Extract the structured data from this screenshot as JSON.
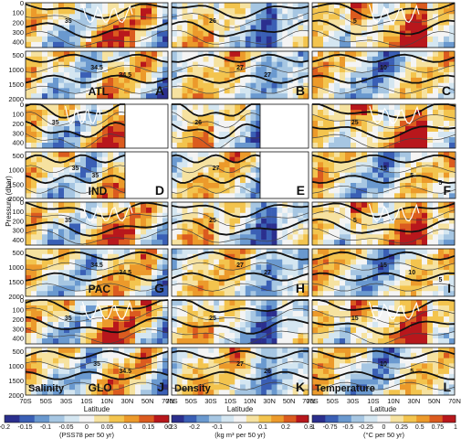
{
  "figure": {
    "y_axis_label": "Pressure (dbar)",
    "x_axis_label": "Latitude",
    "x_ticks": [
      "70S",
      "50S",
      "30S",
      "10S",
      "10N",
      "30N",
      "50N",
      "70N"
    ],
    "y_ticks_upper": [
      "0",
      "100",
      "200",
      "300",
      "400"
    ],
    "y_ticks_lower": [
      "500",
      "1000",
      "1500",
      "2000"
    ]
  },
  "chart_data": [
    {
      "type": "heatmap",
      "panel": "A",
      "column": "salinity",
      "basin": "ATL",
      "contour_labels": [
        "35",
        "34.5",
        "34.5"
      ]
    },
    {
      "type": "heatmap",
      "panel": "B",
      "column": "density",
      "basin": "",
      "contour_labels": [
        "26",
        "27",
        "27"
      ]
    },
    {
      "type": "heatmap",
      "panel": "C",
      "column": "temperature",
      "basin": "",
      "contour_labels": [
        "5",
        "10"
      ]
    },
    {
      "type": "heatmap",
      "panel": "D",
      "column": "salinity",
      "basin": "IND",
      "contour_labels": [
        "35",
        "35",
        "35"
      ]
    },
    {
      "type": "heatmap",
      "panel": "E",
      "column": "density",
      "basin": "",
      "contour_labels": [
        "26",
        "27"
      ]
    },
    {
      "type": "heatmap",
      "panel": "F",
      "column": "temperature",
      "basin": "",
      "contour_labels": [
        "25",
        "15",
        "5",
        "5"
      ]
    },
    {
      "type": "heatmap",
      "panel": "G",
      "column": "salinity",
      "basin": "PAC",
      "contour_labels": [
        "35",
        "34.5",
        "34.5"
      ]
    },
    {
      "type": "heatmap",
      "panel": "H",
      "column": "density",
      "basin": "",
      "contour_labels": [
        "25",
        "27",
        "27"
      ]
    },
    {
      "type": "heatmap",
      "panel": "I",
      "column": "temperature",
      "basin": "",
      "contour_labels": [
        "5",
        "15",
        "10",
        "5"
      ]
    },
    {
      "type": "heatmap",
      "panel": "J",
      "column": "salinity",
      "basin": "GLO",
      "variable_label": "Salinity",
      "contour_labels": [
        "35",
        "35",
        "34.5"
      ]
    },
    {
      "type": "heatmap",
      "panel": "K",
      "column": "density",
      "basin": "",
      "variable_label": "Density",
      "contour_labels": [
        "25",
        "27",
        "26"
      ]
    },
    {
      "type": "heatmap",
      "panel": "L",
      "column": "temperature",
      "basin": "",
      "variable_label": "Temperature",
      "contour_labels": [
        "15",
        "10",
        "5"
      ]
    }
  ],
  "colorbars": [
    {
      "ticks": [
        "-0.2",
        "-0.15",
        "-0.1",
        "-0.05",
        "0",
        "0.05",
        "0.1",
        "0.15",
        "0.2"
      ],
      "unit": "(PSS78 per 50 yr)"
    },
    {
      "ticks": [
        "-0.3",
        "-0.2",
        "-0.1",
        "0",
        "0.1",
        "0.2",
        "0.3"
      ],
      "unit": "(kg m³ per 50 yr)"
    },
    {
      "ticks": [
        "-1",
        "-0.75",
        "-0.5",
        "-0.25",
        "0",
        "0.25",
        "0.5",
        "0.75",
        "1"
      ],
      "unit": "(°C per 50 yr)"
    }
  ],
  "colors": {
    "scale": [
      "#2b2f8e",
      "#3a5fb5",
      "#6a99cf",
      "#a6c6e2",
      "#d4e6f1",
      "#f4f4f4",
      "#f6e2a0",
      "#f3c44e",
      "#ec9a2b",
      "#db5b1f",
      "#b8171c"
    ],
    "contour_thick": "#111111",
    "contour_thin": "#444444",
    "contour_white": "#ffffff"
  }
}
